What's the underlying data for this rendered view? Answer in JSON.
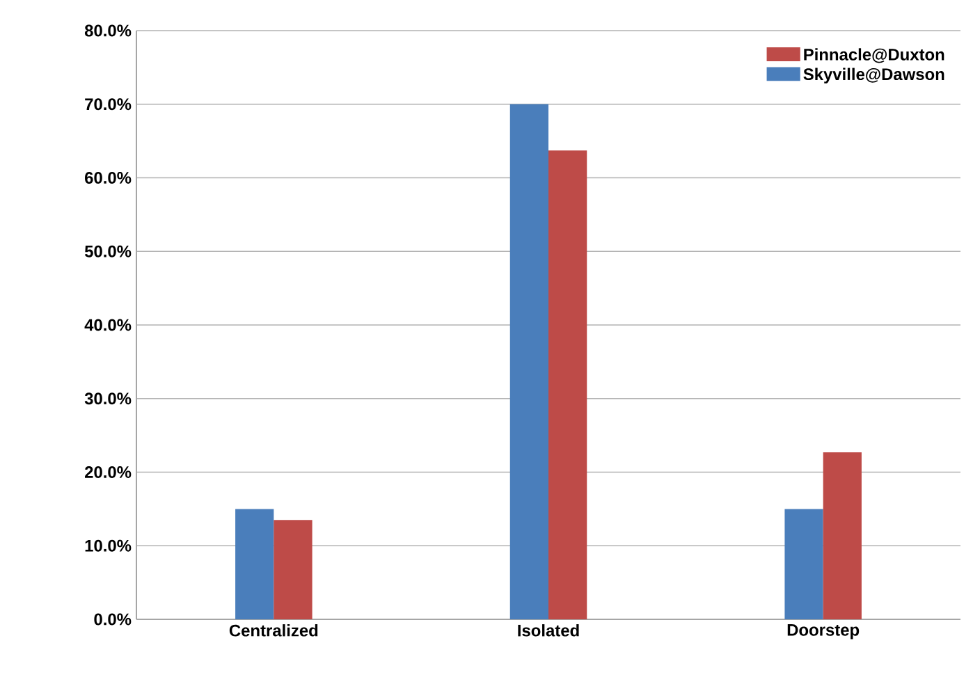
{
  "chart_data": {
    "type": "bar",
    "categories": [
      "Centralized",
      "Isolated",
      "Doorstep"
    ],
    "series": [
      {
        "name": "Skyville@Dawson",
        "color": "#4a7ebb",
        "values": [
          15,
          70,
          15
        ]
      },
      {
        "name": "Pinnacle@Duxton",
        "color": "#be4b48",
        "values": [
          13.5,
          63.7,
          22.7
        ]
      }
    ],
    "ylim": [
      0,
      80
    ],
    "yticks": [
      {
        "value": 0,
        "label": "0.0%"
      },
      {
        "value": 10,
        "label": "10.0%"
      },
      {
        "value": 20,
        "label": "20.0%"
      },
      {
        "value": 30,
        "label": "30.0%"
      },
      {
        "value": 40,
        "label": "40.0%"
      },
      {
        "value": 50,
        "label": "50.0%"
      },
      {
        "value": 60,
        "label": "60.0%"
      },
      {
        "value": 70,
        "label": "70.0%"
      },
      {
        "value": 80,
        "label": "80.0%"
      }
    ],
    "grid": "y",
    "legend": "top right"
  }
}
